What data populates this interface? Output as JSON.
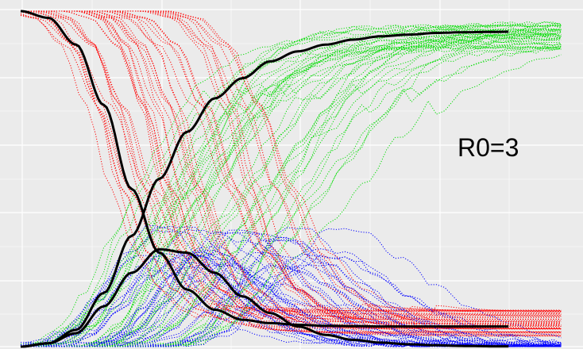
{
  "chart_data": {
    "type": "line",
    "title": "",
    "xlabel": "",
    "ylabel": "",
    "annotation": "R0=3",
    "grid": true,
    "legend": "none",
    "xlim": [
      0,
      100
    ],
    "ylim": [
      0,
      1
    ],
    "colors": {
      "background": "#ebebeb",
      "grid": "#ffffff",
      "susceptible_runs": "#ff0000",
      "infected_runs": "#0000ff",
      "recovered_runs": "#00dd00",
      "deterministic": "#000000"
    },
    "stochastic_runs": 40,
    "series": [
      {
        "style": "solid-black",
        "x": [
          0,
          5,
          10,
          15,
          20,
          25,
          30,
          35,
          40,
          45,
          50,
          55,
          60,
          65,
          70,
          75,
          80,
          85,
          90,
          95
        ],
        "values": [
          1.0,
          0.98,
          0.9,
          0.72,
          0.47,
          0.28,
          0.17,
          0.11,
          0.08,
          0.07,
          0.065,
          0.062,
          0.061,
          0.06,
          0.06,
          0.06,
          0.06,
          0.06,
          0.06,
          0.06
        ]
      },
      {
        "style": "solid-black",
        "x": [
          0,
          5,
          10,
          15,
          20,
          25,
          30,
          35,
          40,
          45,
          50,
          55,
          60,
          65,
          70,
          75,
          80,
          85,
          90,
          95
        ],
        "values": [
          0.0,
          0.01,
          0.04,
          0.12,
          0.22,
          0.29,
          0.28,
          0.22,
          0.15,
          0.1,
          0.06,
          0.035,
          0.02,
          0.012,
          0.007,
          0.004,
          0.002,
          0.001,
          0.001,
          0.0
        ]
      },
      {
        "style": "solid-black",
        "x": [
          0,
          5,
          10,
          15,
          20,
          25,
          30,
          35,
          40,
          45,
          50,
          55,
          60,
          65,
          70,
          75,
          80,
          85,
          90,
          95
        ],
        "values": [
          0.0,
          0.01,
          0.05,
          0.16,
          0.33,
          0.5,
          0.64,
          0.74,
          0.8,
          0.85,
          0.88,
          0.9,
          0.915,
          0.925,
          0.93,
          0.935,
          0.937,
          0.938,
          0.939,
          0.94
        ]
      }
    ]
  }
}
